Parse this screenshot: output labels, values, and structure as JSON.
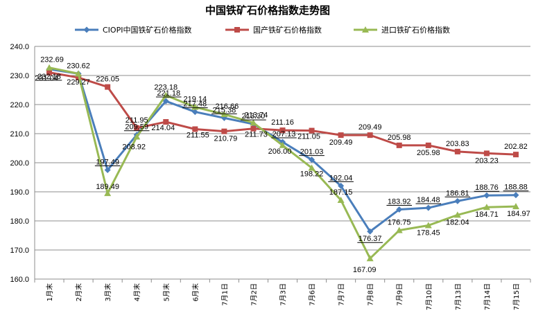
{
  "chart_data": {
    "type": "line",
    "title": "中国铁矿石价格指数走势图",
    "categories": [
      "1月末",
      "2月末",
      "3月末",
      "4月末",
      "5月末",
      "6月末",
      "7月1日",
      "7月2日",
      "7月3日",
      "7月6日",
      "7月7日",
      "7月8日",
      "7月9日",
      "7月10日",
      "7月13日",
      "7月14日",
      "7月15日"
    ],
    "ylim": [
      160,
      240
    ],
    "yticks": [
      "160.0",
      "170.0",
      "180.0",
      "190.0",
      "200.0",
      "210.0",
      "220.0",
      "230.0",
      "240.0"
    ],
    "grid": true,
    "legend_position": "top",
    "series": [
      {
        "name": "CIOPI中国铁矿石价格指数",
        "color": "#4a7ebb",
        "marker": "diamond",
        "values": [
          232.18,
          230.62,
          197.49,
          209.59,
          221.18,
          217.48,
          215.38,
          213.3,
          207.13,
          201.03,
          192.04,
          176.37,
          183.92,
          184.48,
          186.81,
          188.76,
          188.88
        ],
        "labels": [
          "232.18",
          "230.62",
          "197.49",
          "209.59",
          "221.18",
          "217.48",
          "215.38",
          "213.30",
          "207.13",
          "201.03",
          "192.04",
          "176.37",
          "183.92",
          "184.48",
          "186.81",
          "188.76",
          "188.88"
        ]
      },
      {
        "name": "国产铁矿石价格指数",
        "color": "#be4b48",
        "marker": "square",
        "values": [
          231.04,
          229.27,
          226.05,
          211.95,
          214.04,
          211.55,
          210.79,
          211.73,
          211.16,
          211.05,
          209.49,
          209.49,
          205.98,
          205.98,
          203.83,
          203.23,
          202.82
        ],
        "labels": [
          "231.04",
          "229.27",
          "226.05",
          "211.95",
          "214.04",
          "211.55",
          "210.79",
          "211.73",
          "211.16",
          "211.05",
          "209.49",
          "209.49",
          "205.98",
          "205.98",
          "203.83",
          "203.23",
          "202.82"
        ]
      },
      {
        "name": "进口铁矿石价格指数",
        "color": "#98b954",
        "marker": "triangle",
        "values": [
          232.69,
          230.62,
          189.49,
          208.92,
          223.18,
          219.14,
          216.66,
          213.74,
          206.0,
          198.22,
          187.15,
          167.09,
          176.75,
          178.45,
          182.04,
          184.71,
          184.97
        ],
        "labels": [
          "232.69",
          "",
          "189.49",
          "208.92",
          "223.18",
          "219.14",
          "216.66",
          "213.74",
          "206.00",
          "198.22",
          "187.15",
          "167.09",
          "176.75",
          "178.45",
          "182.04",
          "184.71",
          "184.97"
        ]
      }
    ]
  }
}
